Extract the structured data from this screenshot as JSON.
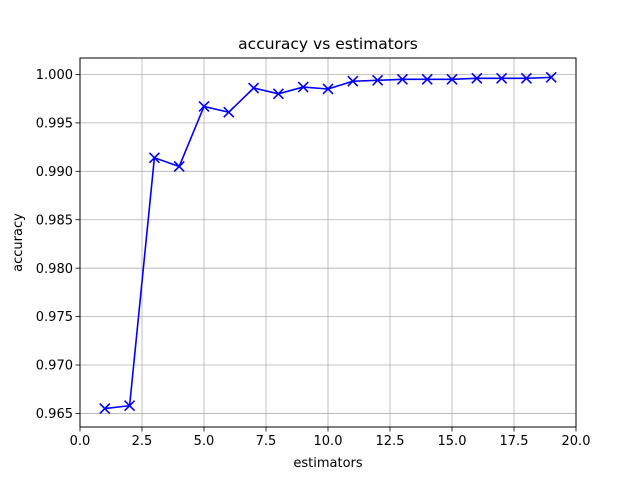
{
  "chart_data": {
    "type": "line",
    "title": "accuracy vs estimators",
    "xlabel": "estimators",
    "ylabel": "accuracy",
    "xlim": [
      0.0,
      20.0
    ],
    "ylim": [
      0.9636,
      1.0017
    ],
    "xticks": [
      "0.0",
      "2.5",
      "5.0",
      "7.5",
      "10.0",
      "12.5",
      "15.0",
      "17.5",
      "20.0"
    ],
    "yticks": [
      "0.965",
      "0.970",
      "0.975",
      "0.980",
      "0.985",
      "0.990",
      "0.995",
      "1.000"
    ],
    "grid": true,
    "marker": "x",
    "series_color": "#0000ff",
    "series": [
      {
        "x": [
          1,
          2,
          3,
          4,
          5,
          6,
          7,
          8,
          9,
          10,
          11,
          12,
          13,
          14,
          15,
          16,
          17,
          18,
          19
        ],
        "values": [
          0.9655,
          0.9658,
          0.9914,
          0.9905,
          0.9967,
          0.9961,
          0.9986,
          0.998,
          0.9987,
          0.9985,
          0.9993,
          0.9994,
          0.9995,
          0.9995,
          0.9995,
          0.9996,
          0.9996,
          0.9996,
          0.9997
        ]
      }
    ]
  }
}
